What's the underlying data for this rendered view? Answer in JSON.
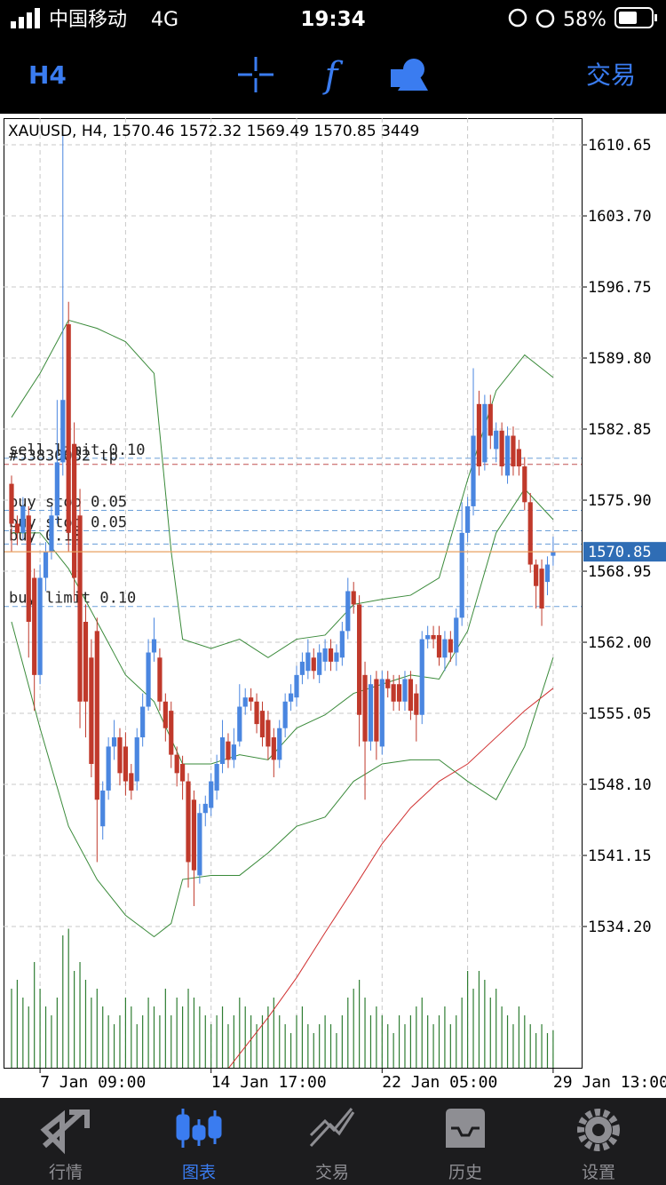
{
  "status_bar": {
    "carrier": "中国移动",
    "network": "4G",
    "time": "19:34",
    "battery": "58%"
  },
  "toolbar": {
    "timeframe": "H4",
    "trade": "交易"
  },
  "chart_data": {
    "type": "candlestick",
    "info": "XAUUSD, H4, 1570.46 1572.32 1569.49 1570.85 3449",
    "categories": [
      null,
      null,
      null,
      null,
      null,
      "7 Jan 09:00",
      null,
      null,
      null,
      null,
      null,
      null,
      null,
      null,
      null,
      null,
      null,
      null,
      null,
      null,
      null,
      null,
      null,
      null,
      null,
      null,
      null,
      null,
      null,
      null,
      null,
      null,
      null,
      null,
      null,
      "14 Jan 17:00",
      null,
      null,
      null,
      null,
      null,
      null,
      null,
      null,
      null,
      null,
      null,
      null,
      null,
      null,
      null,
      null,
      null,
      null,
      null,
      null,
      null,
      null,
      null,
      null,
      null,
      null,
      null,
      null,
      null,
      "22 Jan 05:00",
      null,
      null,
      null,
      null,
      null,
      null,
      null,
      null,
      null,
      null,
      null,
      null,
      null,
      null,
      null,
      null,
      null,
      null,
      null,
      null,
      null,
      null,
      null,
      null,
      null,
      null,
      null,
      null,
      null,
      "29 Jan 13:00"
    ],
    "open": [
      1577.5,
      1573.6,
      1572.7,
      1574.4,
      1568.3,
      1558.8,
      1568.3,
      1570.9,
      1574.4,
      1579.6,
      1593.1,
      1581.4,
      1574.4,
      1564.0,
      1560.5,
      1563.1,
      1544.0,
      1547.5,
      1551.8,
      1552.7,
      1551.8,
      1549.2,
      1548.4,
      1552.7,
      1555.7,
      1561.0,
      1560.5,
      1556.2,
      1555.3,
      1551.0,
      1550.1,
      1548.4,
      1546.6,
      1539.2,
      1545.3,
      1545.8,
      1547.5,
      1550.1,
      1552.3,
      1550.5,
      1552.3,
      1555.7,
      1556.6,
      1556.2,
      1555.3,
      1554.4,
      1552.7,
      1550.5,
      1553.6,
      1556.2,
      1556.6,
      1558.8,
      1559.2,
      1560.5,
      1558.8,
      1560.1,
      1561.4,
      1560.1,
      1560.5,
      1563.1,
      1567.0,
      1565.7,
      1558.8,
      1552.3,
      1558.4,
      1551.8,
      1558.4,
      1557.9,
      1557.9,
      1556.2,
      1558.4,
      1557.0,
      1554.9,
      1562.3,
      1562.7,
      1562.7,
      1560.5,
      1562.3,
      1561.0,
      1564.4,
      1572.7,
      1575.3,
      1585.3,
      1579.6,
      1585.3,
      1580.9,
      1582.7,
      1578.3,
      1582.2,
      1580.9,
      1579.2,
      1575.7,
      1569.6,
      1569.2,
      1567.9,
      1570.46
    ],
    "high": [
      1578.3,
      1574.4,
      1576.2,
      1575.3,
      1569.2,
      1569.6,
      1571.8,
      1575.3,
      1585.7,
      1611.8,
      1595.3,
      1583.5,
      1577.0,
      1565.7,
      1562.3,
      1564.4,
      1548.4,
      1552.7,
      1554.4,
      1553.6,
      1553.2,
      1550.1,
      1553.6,
      1557.0,
      1562.3,
      1564.4,
      1561.4,
      1557.0,
      1556.2,
      1551.8,
      1550.9,
      1549.2,
      1547.5,
      1546.2,
      1547.0,
      1549.2,
      1551.0,
      1554.4,
      1553.1,
      1553.6,
      1557.9,
      1557.5,
      1557.5,
      1557.0,
      1556.2,
      1555.3,
      1553.6,
      1554.4,
      1557.0,
      1557.9,
      1559.7,
      1561.0,
      1562.3,
      1561.4,
      1561.8,
      1562.3,
      1562.3,
      1561.8,
      1564.0,
      1568.3,
      1567.9,
      1566.6,
      1560.1,
      1558.8,
      1559.2,
      1559.2,
      1559.2,
      1558.8,
      1558.8,
      1559.2,
      1559.2,
      1557.9,
      1563.1,
      1563.6,
      1563.6,
      1563.6,
      1563.1,
      1563.1,
      1565.3,
      1575.7,
      1576.2,
      1588.8,
      1586.6,
      1586.2,
      1586.2,
      1583.5,
      1583.5,
      1583.1,
      1583.1,
      1581.8,
      1580.1,
      1576.6,
      1570.1,
      1570.1,
      1570.4,
      1572.32
    ],
    "low": [
      1570.9,
      1571.5,
      1572.0,
      1560.5,
      1555.3,
      1557.9,
      1567.0,
      1570.1,
      1573.6,
      1578.3,
      1570.9,
      1566.0,
      1553.6,
      1552.7,
      1548.8,
      1540.5,
      1542.7,
      1546.6,
      1550.5,
      1548.0,
      1547.0,
      1546.6,
      1547.5,
      1551.8,
      1555.3,
      1560.1,
      1555.3,
      1552.3,
      1549.7,
      1547.9,
      1546.6,
      1538.0,
      1536.2,
      1538.4,
      1544.0,
      1545.0,
      1546.6,
      1549.2,
      1549.7,
      1549.7,
      1551.8,
      1554.9,
      1555.3,
      1553.1,
      1551.8,
      1550.5,
      1548.8,
      1549.7,
      1552.7,
      1555.3,
      1555.7,
      1557.9,
      1558.4,
      1558.4,
      1558.0,
      1559.2,
      1559.2,
      1559.2,
      1559.7,
      1562.3,
      1564.8,
      1551.8,
      1546.6,
      1551.4,
      1550.5,
      1551.0,
      1556.6,
      1555.3,
      1555.3,
      1555.3,
      1554.4,
      1552.3,
      1554.0,
      1561.4,
      1561.4,
      1559.7,
      1559.2,
      1560.1,
      1559.7,
      1563.6,
      1571.8,
      1574.4,
      1578.3,
      1578.8,
      1580.9,
      1579.6,
      1578.3,
      1577.5,
      1578.3,
      1578.3,
      1574.9,
      1568.8,
      1565.3,
      1563.6,
      1566.6,
      1569.49
    ],
    "close": [
      1573.6,
      1572.7,
      1575.3,
      1564.0,
      1558.8,
      1568.3,
      1570.9,
      1574.4,
      1579.6,
      1585.7,
      1572.7,
      1568.3,
      1556.2,
      1556.2,
      1550.1,
      1546.6,
      1547.5,
      1551.8,
      1552.7,
      1549.2,
      1548.4,
      1547.5,
      1552.7,
      1555.7,
      1561.0,
      1562.3,
      1556.2,
      1553.6,
      1551.0,
      1549.2,
      1548.4,
      1540.5,
      1539.7,
      1545.3,
      1546.2,
      1548.4,
      1550.1,
      1552.7,
      1550.5,
      1552.0,
      1555.7,
      1556.6,
      1556.2,
      1554.0,
      1552.7,
      1551.8,
      1550.5,
      1553.6,
      1556.2,
      1557.0,
      1558.8,
      1560.1,
      1561.0,
      1559.2,
      1561.0,
      1561.4,
      1560.1,
      1561.0,
      1563.1,
      1567.0,
      1565.7,
      1554.9,
      1552.3,
      1557.9,
      1552.3,
      1558.4,
      1557.5,
      1556.2,
      1556.2,
      1558.4,
      1555.3,
      1554.9,
      1562.3,
      1562.7,
      1562.3,
      1560.5,
      1562.3,
      1561.0,
      1564.4,
      1572.7,
      1575.3,
      1582.2,
      1579.2,
      1585.3,
      1582.2,
      1582.7,
      1579.2,
      1582.2,
      1579.2,
      1579.2,
      1575.7,
      1569.6,
      1567.5,
      1565.3,
      1569.6,
      1570.85
    ],
    "up_color": "#4a86e0",
    "down_color": "#c0392b",
    "volume": {
      "color": "#2e7d32",
      "lim": [
        0,
        13600
      ],
      "values": [
        7200,
        8000,
        6400,
        5600,
        9600,
        7200,
        5600,
        4800,
        6400,
        12000,
        12600,
        8800,
        9600,
        8000,
        6400,
        7200,
        5600,
        4800,
        4000,
        4800,
        6400,
        5600,
        4000,
        4800,
        6400,
        5600,
        4800,
        7200,
        4800,
        6400,
        5600,
        7200,
        6400,
        5600,
        4800,
        4000,
        4800,
        5600,
        4000,
        4800,
        6400,
        5600,
        4800,
        4000,
        4800,
        5600,
        6400,
        4800,
        4000,
        3200,
        4800,
        5600,
        4000,
        3200,
        4000,
        4800,
        4000,
        3200,
        4800,
        6400,
        7200,
        8000,
        6400,
        4800,
        5600,
        4800,
        4000,
        3200,
        4800,
        4000,
        4800,
        5600,
        6400,
        4800,
        4000,
        4800,
        5600,
        4000,
        4800,
        6400,
        8800,
        7200,
        8800,
        8000,
        6400,
        7200,
        5600,
        4800,
        4000,
        5600,
        4800,
        4000,
        3200,
        4000,
        3200,
        3449
      ]
    },
    "indicators": [
      {
        "color": "#3a8a3a",
        "x": [
          0,
          5,
          10,
          15,
          20,
          25,
          28,
          30,
          35,
          40,
          45,
          50,
          55,
          60,
          65,
          70,
          75,
          80,
          85,
          90,
          95
        ],
        "values": [
          1584.0,
          1588.3,
          1593.5,
          1592.7,
          1591.4,
          1588.3,
          1570.9,
          1562.3,
          1561.4,
          1562.3,
          1560.5,
          1562.3,
          1562.7,
          1565.7,
          1566.2,
          1566.6,
          1568.3,
          1577.9,
          1586.6,
          1590.1,
          1587.9
        ]
      },
      {
        "color": "#3a8a3a",
        "x": [
          0,
          5,
          10,
          15,
          20,
          25,
          30,
          35,
          40,
          45,
          50,
          55,
          60,
          65,
          70,
          75,
          80,
          85,
          90,
          95
        ],
        "values": [
          1572.7,
          1572.7,
          1569.2,
          1564.0,
          1558.8,
          1556.2,
          1550.1,
          1550.1,
          1551.0,
          1550.5,
          1553.6,
          1554.9,
          1557.0,
          1557.9,
          1558.8,
          1558.4,
          1563.1,
          1572.7,
          1577.0,
          1574.0
        ]
      },
      {
        "color": "#3a8a3a",
        "x": [
          0,
          5,
          10,
          15,
          20,
          25,
          28,
          30,
          35,
          40,
          45,
          50,
          55,
          60,
          65,
          70,
          75,
          80,
          85,
          90,
          95
        ],
        "values": [
          1564.0,
          1553.6,
          1544.0,
          1538.8,
          1535.3,
          1533.2,
          1534.5,
          1538.8,
          1539.2,
          1539.2,
          1541.4,
          1544.0,
          1544.9,
          1548.4,
          1550.1,
          1550.5,
          1550.5,
          1548.4,
          1546.6,
          1551.8,
          1560.5
        ]
      },
      {
        "color": "#d03030",
        "x": [
          38,
          45,
          50,
          55,
          60,
          65,
          70,
          75,
          80,
          85,
          90,
          95
        ],
        "values": [
          1520.3,
          1525.3,
          1529.2,
          1533.6,
          1537.9,
          1542.3,
          1545.8,
          1548.4,
          1550.1,
          1552.7,
          1555.3,
          1557.5
        ]
      }
    ],
    "orders": [
      {
        "label": "sell limit 0.10",
        "value": 1580.0,
        "color": "#6a9fd8"
      },
      {
        "label": "#53830082 tp",
        "value": 1579.4,
        "color": "#c05050"
      },
      {
        "label": "buy stop 0.05",
        "value": 1574.9,
        "color": "#6a9fd8"
      },
      {
        "label": "buy stop 0.05",
        "value": 1572.9,
        "color": "#6a9fd8"
      },
      {
        "label": "buy 0.10",
        "value": 1571.6,
        "color": "#6a9fd8"
      },
      {
        "label": "buy limit 0.10",
        "value": 1565.5,
        "color": "#6a9fd8"
      }
    ],
    "last_price": 1570.85,
    "last_price_color": "#e8a060",
    "ylim": [
      1520.3,
      1613.26
    ],
    "yticks": [
      1610.65,
      {
        "value": 1603.7,
        "label": "1603.70"
      },
      1596.75,
      {
        "value": 1589.8,
        "label": "1589.80"
      },
      1582.85,
      {
        "value": 1575.9,
        "label": "1575.90"
      },
      1568.95,
      {
        "value": 1562,
        "label": "1562.00"
      },
      1555.05,
      {
        "value": 1548.1,
        "label": "1548.10"
      },
      1541.15,
      {
        "value": 1534.2,
        "label": "1534.20"
      }
    ],
    "grid": true
  },
  "tabs": [
    "行情",
    "图表",
    "交易",
    "历史",
    "设置"
  ]
}
